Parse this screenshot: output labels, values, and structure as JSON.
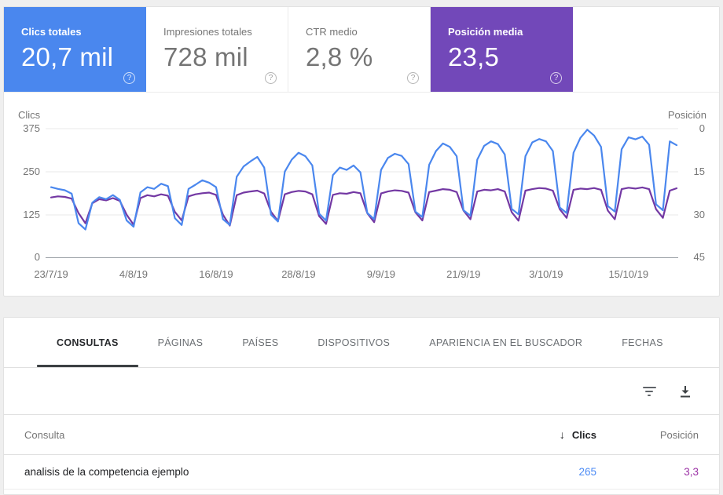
{
  "cards": [
    {
      "label": "Clics totales",
      "value": "20,7 mil",
      "selected": true,
      "color": "#4a87ee"
    },
    {
      "label": "Impresiones totales",
      "value": "728 mil",
      "selected": false,
      "color": "#ffffff"
    },
    {
      "label": "CTR medio",
      "value": "2,8 %",
      "selected": false,
      "color": "#ffffff"
    },
    {
      "label": "Posición media",
      "value": "23,5",
      "selected": true,
      "color": "#7248b9"
    }
  ],
  "help_glyph": "?",
  "chart_data": {
    "type": "line",
    "start_date": "23/7/19",
    "end_date": "22/10/19",
    "grid": true,
    "legend_position": "none",
    "left_axis": {
      "label": "Clics",
      "ticks": [
        "375",
        "250",
        "125",
        "0"
      ],
      "range": [
        0,
        375
      ]
    },
    "right_axis": {
      "label": "Posición",
      "ticks": [
        "0",
        "15",
        "30",
        "45"
      ],
      "range": [
        0,
        45
      ],
      "inverted": true
    },
    "x_tick_labels": [
      "23/7/19",
      "4/8/19",
      "16/8/19",
      "28/8/19",
      "9/9/19",
      "21/9/19",
      "3/10/19",
      "15/10/19"
    ],
    "x_tick_day_index": [
      0,
      12,
      24,
      36,
      48,
      60,
      72,
      84
    ],
    "series": [
      {
        "name": "Clics",
        "axis": "left",
        "color": "#4a87ee",
        "values": [
          205,
          200,
          196,
          186,
          100,
          82,
          160,
          176,
          170,
          182,
          168,
          108,
          90,
          190,
          205,
          200,
          215,
          208,
          115,
          95,
          200,
          212,
          225,
          218,
          205,
          112,
          95,
          235,
          265,
          280,
          293,
          262,
          125,
          105,
          250,
          285,
          305,
          295,
          268,
          128,
          108,
          240,
          262,
          255,
          268,
          248,
          130,
          112,
          255,
          290,
          302,
          296,
          272,
          134,
          118,
          270,
          310,
          332,
          322,
          295,
          138,
          122,
          285,
          325,
          338,
          330,
          300,
          142,
          126,
          295,
          335,
          345,
          338,
          310,
          146,
          130,
          305,
          348,
          372,
          355,
          322,
          150,
          134,
          315,
          350,
          344,
          352,
          328,
          155,
          138,
          338,
          327
        ]
      },
      {
        "name": "Posición",
        "axis": "right",
        "color": "#7338a3",
        "values": [
          24,
          23.6,
          23.8,
          24.4,
          29.5,
          33,
          26,
          24.6,
          25,
          24.2,
          25.2,
          30,
          33.5,
          24.2,
          23.2,
          23.6,
          22.9,
          23.4,
          29,
          32,
          23.6,
          22.9,
          22.5,
          22.3,
          23.1,
          30,
          33.8,
          23.2,
          22.3,
          21.9,
          21.6,
          22.6,
          29,
          32.2,
          22.9,
          22.1,
          21.7,
          21.9,
          22.9,
          30.5,
          33.2,
          23.1,
          22.5,
          22.7,
          22.1,
          22.5,
          29.5,
          32.6,
          22.6,
          21.9,
          21.5,
          21.7,
          22.3,
          29.2,
          32,
          22.1,
          21.6,
          21.1,
          21.3,
          22.1,
          28.6,
          31.6,
          21.9,
          21.3,
          21.5,
          21.1,
          21.9,
          29.1,
          32.1,
          21.6,
          21.1,
          20.7,
          20.9,
          21.6,
          28.1,
          31.1,
          21.3,
          20.9,
          21.1,
          20.7,
          21.3,
          28.6,
          31.6,
          21.1,
          20.6,
          20.9,
          20.5,
          21.1,
          28.1,
          31.1,
          21.6,
          20.8
        ]
      }
    ]
  },
  "tabs": {
    "items": [
      "CONSULTAS",
      "PÁGINAS",
      "PAÍSES",
      "DISPOSITIVOS",
      "APARIENCIA EN EL BUSCADOR",
      "FECHAS"
    ],
    "active": "CONSULTAS"
  },
  "toolbar": {
    "icons": [
      "filter-icon",
      "download-icon"
    ]
  },
  "table": {
    "columns": {
      "query": "Consulta",
      "clicks": "Clics",
      "position": "Posición"
    },
    "sort": {
      "column": "Clics",
      "direction": "desc",
      "arrow": "↓"
    },
    "rows": [
      {
        "query": "analisis de la competencia ejemplo",
        "clicks": "265",
        "position": "3,3"
      }
    ]
  }
}
